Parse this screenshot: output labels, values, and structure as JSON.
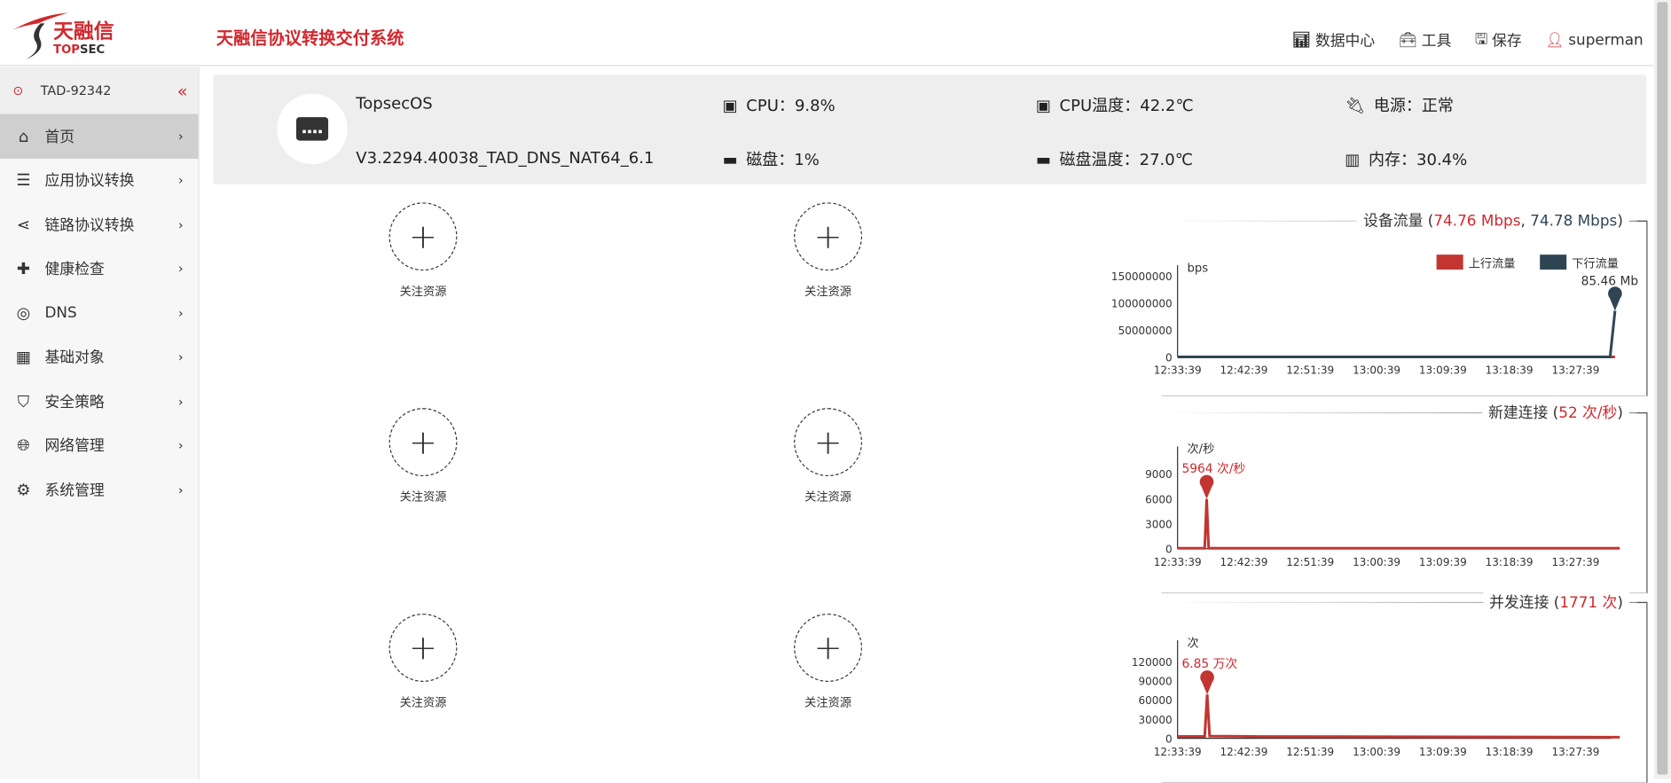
{
  "header": {
    "logo_text": "天融信",
    "logo_sub": "TOPSEC",
    "title": "天融信协议转换交付系统",
    "nav": [
      {
        "label": "数据中心",
        "icon": "bar-chart-icon"
      },
      {
        "label": "工具",
        "icon": "toolbox-icon"
      },
      {
        "label": "保存",
        "icon": "save-icon"
      },
      {
        "label": "superman",
        "icon": "user-icon"
      }
    ]
  },
  "sidebar": {
    "device": "TAD-92342",
    "items": [
      {
        "label": "首页",
        "icon": "home-icon",
        "active": true
      },
      {
        "label": "应用协议转换",
        "icon": "server-icon"
      },
      {
        "label": "链路协议转换",
        "icon": "share-icon"
      },
      {
        "label": "健康检查",
        "icon": "medkit-icon"
      },
      {
        "label": "DNS",
        "icon": "dns-icon"
      },
      {
        "label": "基础对象",
        "icon": "grid-icon"
      },
      {
        "label": "安全策略",
        "icon": "shield-icon"
      },
      {
        "label": "网络管理",
        "icon": "globe-icon"
      },
      {
        "label": "系统管理",
        "icon": "gears-icon"
      }
    ]
  },
  "info": {
    "os": "TopsecOS",
    "version": "V3.2294.40038_TAD_DNS_NAT64_6.1",
    "cpu": "CPU：9.8%",
    "cpu_temp": "CPU温度：42.2℃",
    "power": "电源：正常",
    "disk": "磁盘：1%",
    "disk_temp": "磁盘温度：27.0℃",
    "memory": "内存：30.4%"
  },
  "widgets": {
    "label": "关注资源",
    "count": 6
  },
  "colors": {
    "accent": "#d0282e",
    "upstream": "#c23531",
    "downstream": "#2f4554"
  },
  "chart_data": [
    {
      "type": "line",
      "title": "设备流量",
      "title_values": [
        "74.76 Mbps",
        "74.78 Mbps"
      ],
      "ylabel": "bps",
      "yticks": [
        0,
        50000000,
        100000000,
        150000000
      ],
      "ylim": [
        0,
        150000000
      ],
      "xticks": [
        "12:33:39",
        "12:42:39",
        "12:51:39",
        "13:00:39",
        "13:09:39",
        "13:18:39",
        "13:27:39"
      ],
      "xlim": [
        "12:33:39",
        "13:33:39"
      ],
      "legend": [
        "上行流量",
        "下行流量"
      ],
      "legend_position": "top-right",
      "series": [
        {
          "name": "上行流量",
          "color": "#c23531",
          "points": [
            [
              "12:33:39",
              0
            ],
            [
              "13:33:00",
              0
            ]
          ]
        },
        {
          "name": "下行流量",
          "color": "#2f4554",
          "points": [
            [
              "12:33:39",
              0
            ],
            [
              "13:32:20",
              0
            ],
            [
              "13:33:00",
              85460000
            ]
          ]
        }
      ],
      "markpoint": {
        "series": 1,
        "label": "85.46 Mb",
        "at": [
          "13:33:00",
          85460000
        ]
      }
    },
    {
      "type": "line",
      "title": "新建连接",
      "title_values": [
        "52 次/秒"
      ],
      "ylabel": "次/秒",
      "yticks": [
        0,
        3000,
        6000,
        9000
      ],
      "ylim": [
        0,
        10500
      ],
      "xticks": [
        "12:33:39",
        "12:42:39",
        "12:51:39",
        "13:00:39",
        "13:09:39",
        "13:18:39",
        "13:27:39"
      ],
      "xlim": [
        "12:33:39",
        "13:33:39"
      ],
      "series": [
        {
          "color": "#c23531",
          "points": [
            [
              "12:33:39",
              60
            ],
            [
              "12:37:20",
              60
            ],
            [
              "12:37:36",
              5964
            ],
            [
              "12:37:52",
              60
            ],
            [
              "13:33:39",
              52
            ]
          ]
        }
      ],
      "markpoint": {
        "series": 0,
        "label": "5964 次/秒",
        "at": [
          "12:37:36",
          5964
        ]
      }
    },
    {
      "type": "line",
      "title": "并发连接",
      "title_values": [
        "1771 次"
      ],
      "ylabel": "次",
      "yticks": [
        0,
        30000,
        60000,
        90000,
        120000
      ],
      "ylim": [
        0,
        130000
      ],
      "xticks": [
        "12:33:39",
        "12:42:39",
        "12:51:39",
        "13:00:39",
        "13:09:39",
        "13:18:39",
        "13:27:39"
      ],
      "xlim": [
        "12:33:39",
        "13:33:39"
      ],
      "series": [
        {
          "color": "#c23531",
          "points": [
            [
              "12:33:39",
              3000
            ],
            [
              "12:37:20",
              3000
            ],
            [
              "12:37:40",
              68500
            ],
            [
              "12:38:00",
              3500
            ],
            [
              "12:45:00",
              2800
            ],
            [
              "13:33:39",
              1771
            ]
          ]
        }
      ],
      "markpoint": {
        "series": 0,
        "label": "6.85 万次",
        "at": [
          "12:37:40",
          68500
        ]
      }
    }
  ]
}
